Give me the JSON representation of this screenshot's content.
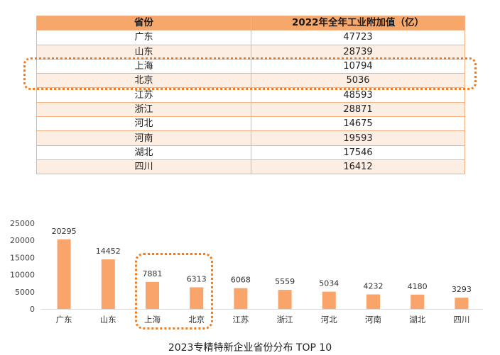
{
  "table": {
    "headers": [
      "省份",
      "2022年全年工业附加值（亿）"
    ],
    "rows": [
      [
        "广东",
        "47723"
      ],
      [
        "山东",
        "28739"
      ],
      [
        "上海",
        "10794"
      ],
      [
        "北京",
        "5036"
      ],
      [
        "江苏",
        "48593"
      ],
      [
        "浙江",
        "28871"
      ],
      [
        "河北",
        "14675"
      ],
      [
        "河南",
        "19593"
      ],
      [
        "湖北",
        "17546"
      ],
      [
        "四川",
        "16412"
      ]
    ]
  },
  "colors": {
    "header_bg": "#f8a76a",
    "alt_row_bg": "#fdeee3",
    "bar": "#f8a46a",
    "highlight": "#f07c22"
  },
  "chart_data": {
    "type": "bar",
    "title": "2023专精特新企业省份分布 TOP 10",
    "categories": [
      "广东",
      "山东",
      "上海",
      "北京",
      "江苏",
      "浙江",
      "河北",
      "河南",
      "湖北",
      "四川"
    ],
    "values": [
      20295,
      14452,
      7881,
      6313,
      6068,
      5559,
      5034,
      4232,
      4180,
      3293
    ],
    "ylim": [
      0,
      25000
    ],
    "yticks": [
      "0",
      "5000",
      "10000",
      "15000",
      "20000",
      "25000"
    ],
    "grid": false,
    "data_labels": true
  }
}
